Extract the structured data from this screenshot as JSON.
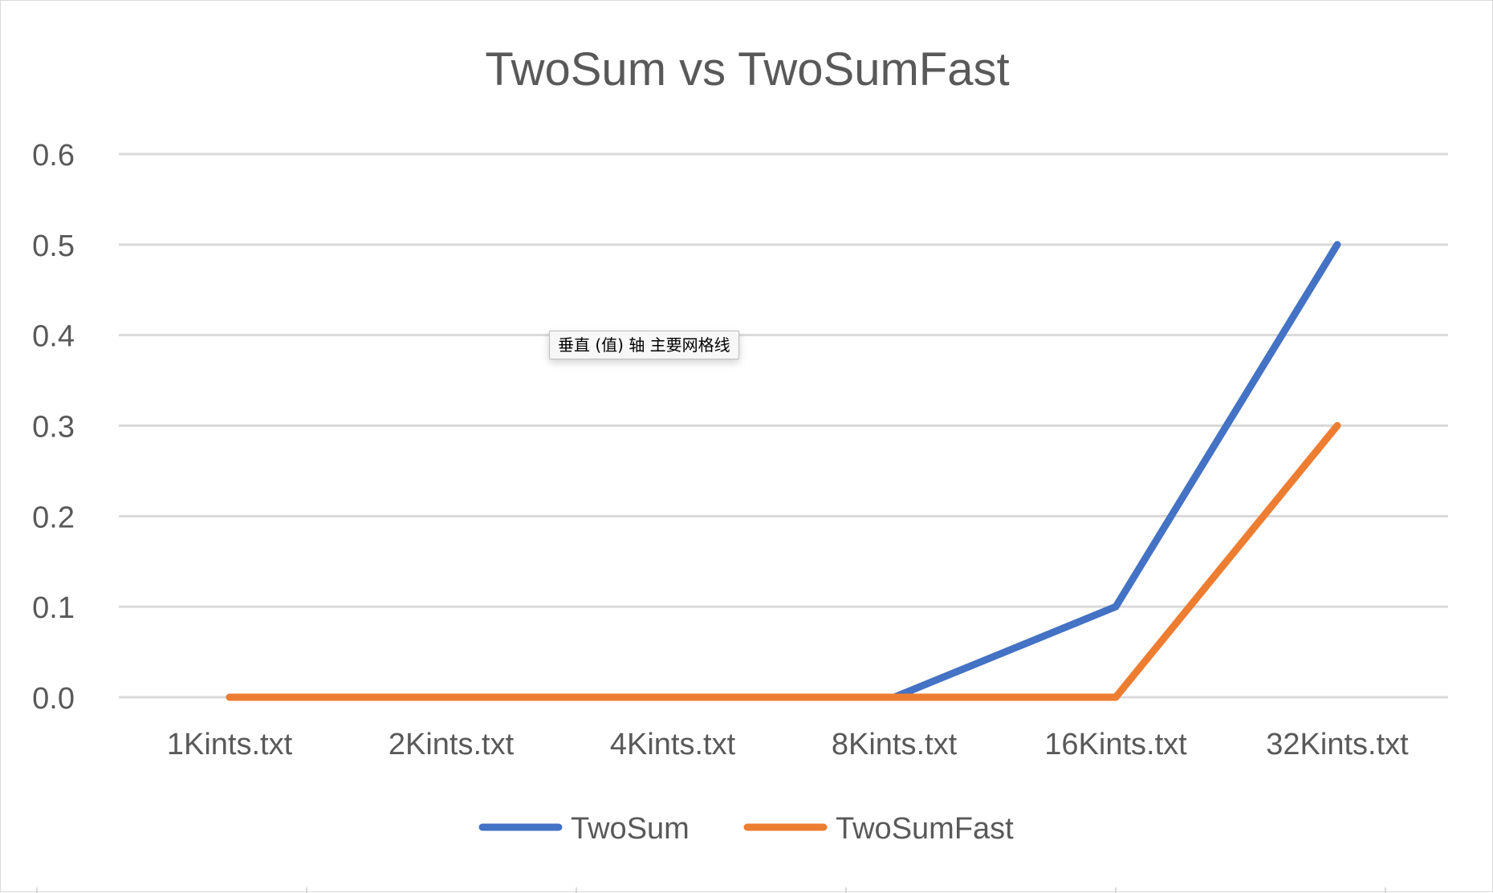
{
  "chart_data": {
    "type": "line",
    "title": "TwoSum vs TwoSumFast",
    "categories": [
      "1Kints.txt",
      "2Kints.txt",
      "4Kints.txt",
      "8Kints.txt",
      "16Kints.txt",
      "32Kints.txt"
    ],
    "series": [
      {
        "name": "TwoSum",
        "color": "#4472c4",
        "values": [
          0.0,
          0.0,
          0.0,
          0.0,
          0.1,
          0.5
        ]
      },
      {
        "name": "TwoSumFast",
        "color": "#ed7d31",
        "values": [
          0.0,
          0.0,
          0.0,
          0.0,
          0.0,
          0.3
        ]
      }
    ],
    "ylim": [
      0,
      0.6
    ],
    "yticks": [
      "0.0",
      "0.1",
      "0.2",
      "0.3",
      "0.4",
      "0.5",
      "0.6"
    ],
    "grid": true,
    "gridline_color": "#d9d9d9",
    "legend_position": "bottom"
  },
  "tooltip": {
    "text": "垂直 (值) 轴 主要网格线"
  }
}
